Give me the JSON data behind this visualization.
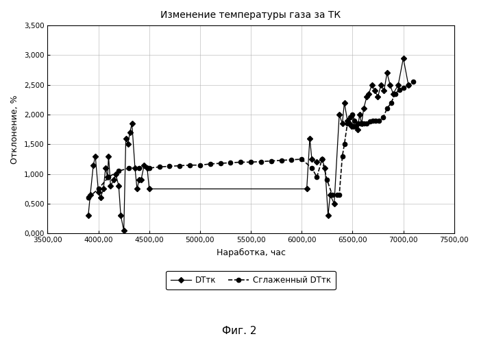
{
  "title": "Изменение температуры газа за ТК",
  "xlabel": "Наработка, час",
  "ylabel": "Отклонение, %",
  "figcaption": "Фиг. 2",
  "xlim": [
    3500,
    7500
  ],
  "ylim": [
    0.0,
    3.5
  ],
  "xticks": [
    3500.0,
    4000.0,
    4500.0,
    5000.0,
    5500.0,
    6000.0,
    6500.0,
    7000.0,
    7500.0
  ],
  "yticks": [
    0.0,
    0.5,
    1.0,
    1.5,
    2.0,
    2.5,
    3.0,
    3.5
  ],
  "legend_label1": "DTтк",
  "legend_label2": "Сглаженный DTтк",
  "series1_x": [
    3900,
    3920,
    3950,
    3970,
    4000,
    4020,
    4050,
    4070,
    4090,
    4100,
    4120,
    4150,
    4170,
    4200,
    4220,
    4250,
    4270,
    4290,
    4310,
    4330,
    4360,
    4380,
    4400,
    4420,
    4450,
    4480,
    4500,
    6050,
    6080,
    6100,
    6150,
    6200,
    6230,
    6260,
    6280,
    6320,
    6370,
    6400,
    6420,
    6450,
    6470,
    6490,
    6510,
    6530,
    6550,
    6570,
    6590,
    6610,
    6640,
    6660,
    6690,
    6720,
    6750,
    6780,
    6810,
    6840,
    6870,
    6900,
    6950,
    7000,
    7050
  ],
  "series1_y": [
    0.3,
    0.65,
    1.15,
    1.3,
    0.7,
    0.6,
    0.75,
    1.1,
    0.95,
    1.3,
    0.8,
    0.9,
    1.0,
    0.8,
    0.3,
    0.05,
    1.6,
    1.5,
    1.7,
    1.85,
    1.1,
    0.75,
    0.9,
    0.9,
    1.15,
    1.1,
    0.75,
    0.75,
    1.6,
    1.25,
    1.2,
    1.25,
    1.1,
    0.3,
    0.65,
    0.5,
    2.0,
    1.85,
    2.2,
    1.9,
    1.85,
    1.8,
    1.8,
    1.8,
    1.75,
    2.0,
    1.85,
    2.1,
    2.3,
    2.35,
    2.5,
    2.4,
    2.3,
    2.5,
    2.4,
    2.7,
    2.5,
    2.35,
    2.5,
    2.95,
    2.5
  ],
  "series2_x": [
    3900,
    4000,
    4100,
    4200,
    4300,
    4400,
    4500,
    4600,
    4700,
    4800,
    4900,
    5000,
    5100,
    5200,
    5300,
    5400,
    5500,
    5600,
    5700,
    5800,
    5900,
    6000,
    6100,
    6150,
    6200,
    6250,
    6300,
    6350,
    6370,
    6400,
    6420,
    6450,
    6480,
    6500,
    6520,
    6550,
    6580,
    6610,
    6640,
    6670,
    6700,
    6730,
    6760,
    6800,
    6840,
    6880,
    6920,
    6960,
    7000,
    7050,
    7100
  ],
  "series2_y": [
    0.6,
    0.75,
    0.95,
    1.05,
    1.1,
    1.1,
    1.1,
    1.12,
    1.13,
    1.14,
    1.15,
    1.15,
    1.17,
    1.18,
    1.19,
    1.2,
    1.2,
    1.21,
    1.22,
    1.23,
    1.24,
    1.25,
    1.1,
    0.95,
    1.25,
    0.9,
    0.65,
    0.65,
    0.65,
    1.3,
    1.5,
    1.85,
    1.95,
    2.0,
    1.9,
    1.85,
    1.85,
    1.85,
    1.85,
    1.88,
    1.9,
    1.9,
    1.9,
    1.95,
    2.1,
    2.2,
    2.35,
    2.42,
    2.45,
    2.5,
    2.55
  ],
  "background_color": "#ffffff",
  "line_color": "#000000",
  "grid_color": "#b0b0b0"
}
